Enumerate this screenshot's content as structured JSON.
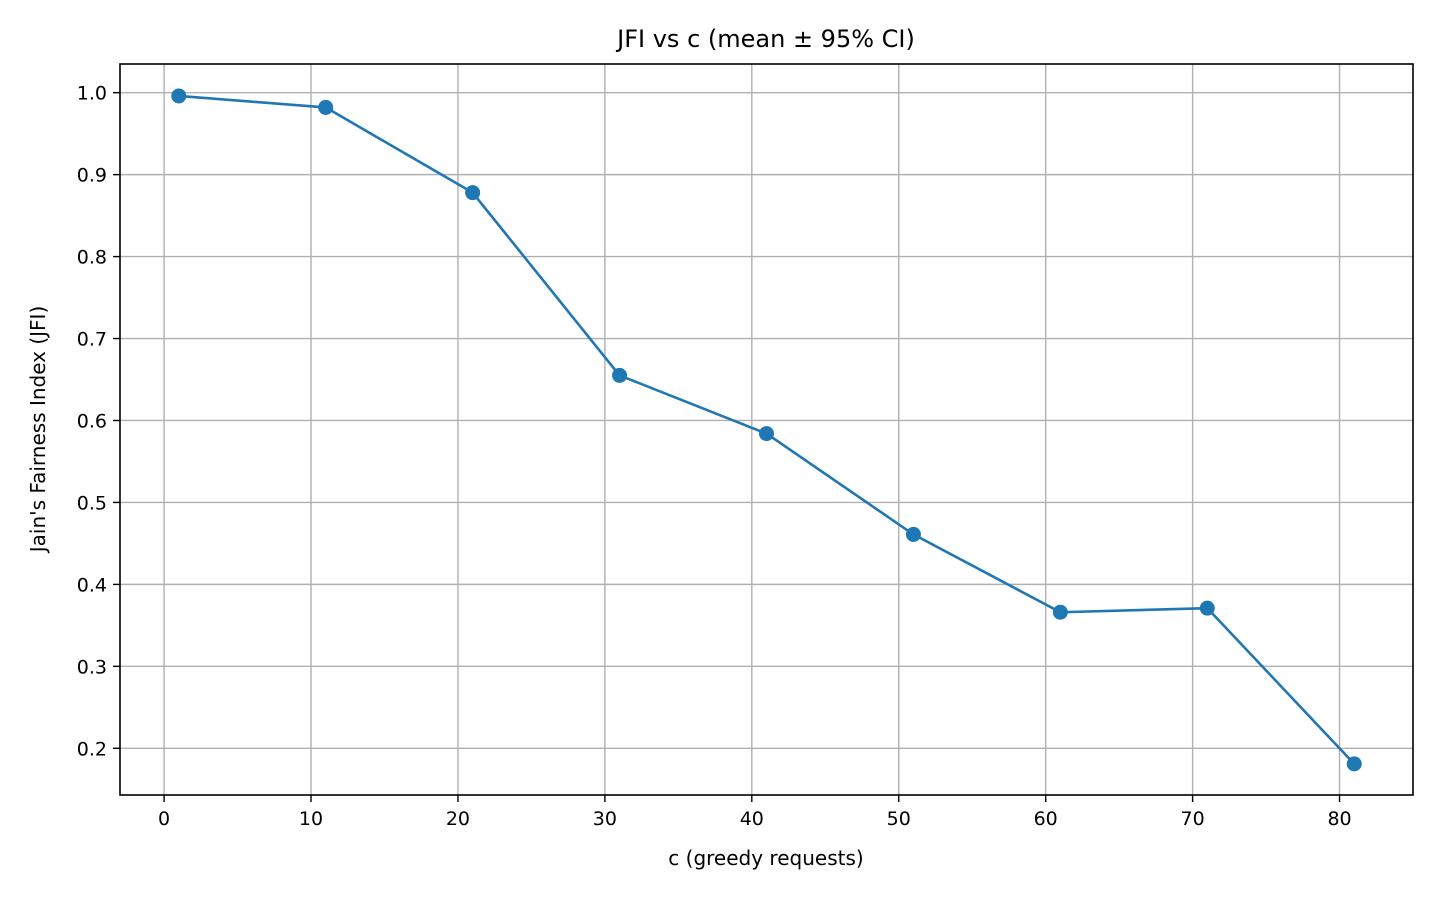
{
  "chart_data": {
    "type": "line",
    "title": "JFI vs c (mean ± 95% CI)",
    "xlabel": "c (greedy requests)",
    "ylabel": "Jain's Fairness Index (JFI)",
    "xlim": [
      -3,
      85
    ],
    "ylim": [
      0.143,
      1.035
    ],
    "x_ticks": [
      0,
      10,
      20,
      30,
      40,
      50,
      60,
      70,
      80
    ],
    "y_ticks": [
      0.2,
      0.3,
      0.4,
      0.5,
      0.6,
      0.7,
      0.8,
      0.9,
      1.0
    ],
    "x_tick_labels": [
      "0",
      "10",
      "20",
      "30",
      "40",
      "50",
      "60",
      "70",
      "80"
    ],
    "y_tick_labels": [
      "0.2",
      "0.3",
      "0.4",
      "0.5",
      "0.6",
      "0.7",
      "0.8",
      "0.9",
      "1.0"
    ],
    "grid": true,
    "legend": "none",
    "series": [
      {
        "color": "#1f77b4",
        "marker": "circle",
        "error_bars": "95% CI",
        "x": [
          1,
          11,
          21,
          31,
          41,
          51,
          61,
          71,
          81
        ],
        "y": [
          0.996,
          0.982,
          0.878,
          0.655,
          0.584,
          0.461,
          0.366,
          0.371,
          0.181
        ],
        "ci": [
          0.002,
          0.003,
          0.003,
          0.004,
          0.003,
          0.003,
          0.002,
          0.003,
          0.004
        ]
      }
    ]
  }
}
